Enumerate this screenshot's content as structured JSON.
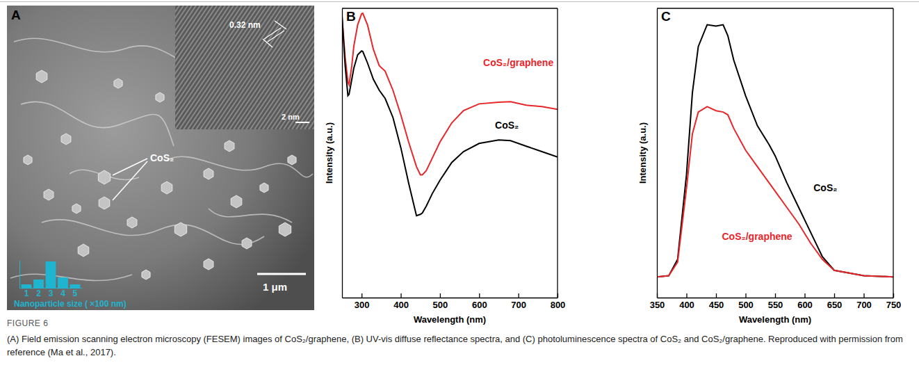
{
  "figure_label": "FIGURE 6",
  "caption": "(A) Field emission scanning electron microscopy (FESEM) images of CoS₂/graphene, (B) UV-vis diffuse reflectance spectra, and (C) photoluminescence spectra of CoS₂ and CoS₂/graphene. Reproduced with permission from reference (Ma et al., 2017).",
  "chart_data": [
    {
      "type": "bar",
      "panel": "A",
      "xlabel": "Nanoparticle size ( ×100 nm)",
      "categories": [
        "1",
        "2",
        "3",
        "4",
        "5"
      ],
      "values": [
        5,
        12,
        38,
        15,
        5
      ],
      "color": "#1fb5d0",
      "ylim": [
        0,
        40
      ],
      "tick_labels": "x",
      "annotations": [
        "0.32 nm",
        "2 nm",
        "CoS₂",
        "1 μm"
      ]
    },
    {
      "type": "line",
      "panel": "B",
      "xlabel": "Wavelength (nm)",
      "ylabel": "Intensity (a.u.)",
      "x": [
        250,
        258,
        265,
        268,
        275,
        280,
        290,
        300,
        303,
        315,
        330,
        345,
        360,
        380,
        400,
        420,
        440,
        450,
        455,
        465,
        470,
        480,
        500,
        530,
        560,
        600,
        650,
        680,
        720,
        760,
        800
      ],
      "series": [
        {
          "name": "CoS₂/graphene",
          "color": "#e8262a",
          "values": [
            103,
            88,
            79,
            78,
            85,
            92,
            100,
            104,
            104.2,
            100,
            91,
            85,
            83,
            76,
            67,
            57,
            48,
            45,
            45,
            46.5,
            48,
            51,
            57,
            64,
            68.5,
            71,
            71.6,
            71.8,
            70.5,
            70,
            69
          ]
        },
        {
          "name": "CoS₂",
          "color": "#000000",
          "values": [
            103,
            85,
            74,
            74.5,
            80,
            84,
            89,
            90.4,
            90.2,
            86,
            80,
            76,
            73,
            66,
            55,
            42,
            30,
            30.5,
            31,
            33.5,
            35,
            38,
            43,
            49.5,
            53.5,
            56.5,
            57.8,
            57.5,
            55.5,
            53.5,
            51.5
          ]
        }
      ],
      "xlim": [
        250,
        800
      ],
      "xticks": [
        300,
        400,
        500,
        600,
        700,
        800
      ],
      "ylim": [
        0,
        106
      ],
      "tick_labels": "x"
    },
    {
      "type": "line",
      "panel": "C",
      "xlabel": "Wavelength (nm)",
      "ylabel": "Intensity (a.u.)",
      "x": [
        350,
        370,
        385,
        400,
        410,
        420,
        435,
        450,
        462,
        470,
        480,
        500,
        520,
        540,
        550,
        570,
        590,
        610,
        630,
        650,
        700,
        750
      ],
      "series": [
        {
          "name": "CoS₂",
          "color": "#000000",
          "values": [
            7.6,
            8,
            14,
            45,
            75,
            92,
            100,
            99.5,
            100,
            96,
            87,
            74,
            63,
            56,
            52,
            42,
            33,
            24,
            15,
            10,
            8,
            7.6
          ]
        },
        {
          "name": "CoS₂/graphene",
          "color": "#e8262a",
          "values": [
            7.6,
            8,
            13,
            40,
            60,
            68,
            70,
            68.5,
            68,
            67,
            62,
            54,
            48,
            42,
            39,
            33,
            27,
            20,
            14,
            10,
            8,
            7.6
          ]
        }
      ],
      "xlim": [
        350,
        750
      ],
      "xticks": [
        350,
        400,
        450,
        500,
        550,
        600,
        650,
        700,
        750
      ],
      "ylim": [
        0,
        106
      ],
      "tick_labels": "x"
    }
  ]
}
